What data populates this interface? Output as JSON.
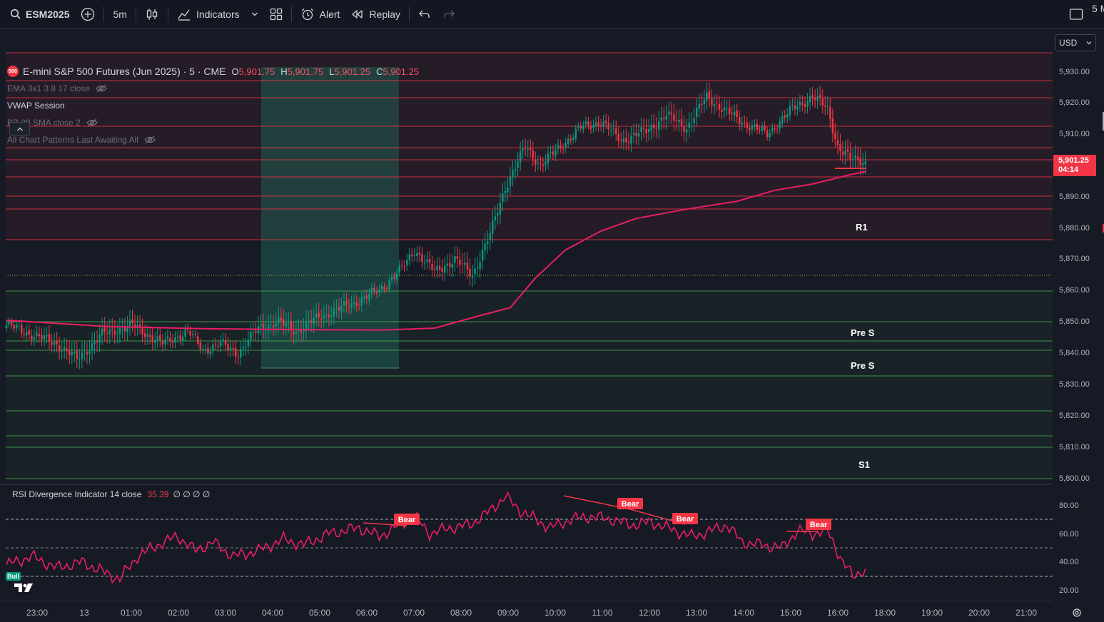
{
  "toolbar": {
    "symbol": "ESM2025",
    "interval": "5m",
    "indicators_label": "Indicators",
    "alert_label": "Alert",
    "replay_label": "Replay",
    "right_label": "5 M"
  },
  "legend": {
    "badge": "500",
    "title": "E-mini S&P 500 Futures (Jun 2025) · 5 · CME",
    "open_label": "O",
    "open": "5,901.75",
    "high_label": "H",
    "high": "5,901.75",
    "low_label": "L",
    "low": "5,901.25",
    "close_label": "C",
    "close": "5,901.25",
    "indicators": [
      "EMA 3x1 3 8 17 close",
      "VWAP Session",
      "BB 20 SMA close 2",
      "All Chart Patterns Last Awaiting All"
    ]
  },
  "currency": "USD",
  "price_tag": {
    "price": "5,901.25",
    "countdown": "04:14"
  },
  "price_axis": [
    "5,930.00",
    "5,920.00",
    "5,910.00",
    "5,890.00",
    "5,880.00",
    "5,870.00",
    "5,860.00",
    "5,850.00",
    "5,840.00",
    "5,830.00",
    "5,820.00",
    "5,810.00",
    "5,800.00"
  ],
  "rsi_axis": [
    "80.00",
    "60.00",
    "40.00",
    "20.00"
  ],
  "time_axis": [
    "23:00",
    "13",
    "01:00",
    "02:00",
    "03:00",
    "04:00",
    "05:00",
    "06:00",
    "07:00",
    "08:00",
    "09:00",
    "10:00",
    "11:00",
    "12:00",
    "13:00",
    "14:00",
    "15:00",
    "16:00",
    "18:00",
    "19:00",
    "20:00",
    "21:00"
  ],
  "level_labels": {
    "r1": "R1",
    "pre_s_1": "Pre S",
    "pre_s_2": "Pre S",
    "s1": "S1"
  },
  "rsi": {
    "label": "RSI Divergence Indicator 14 close",
    "value": "35.39",
    "symbols": "∅ ∅ ∅ ∅",
    "bull": "Bull",
    "bear_labels": [
      "Bear",
      "Bear",
      "Bear",
      "Bear"
    ]
  },
  "colors": {
    "up": "#089981",
    "down": "#f23645",
    "vwap": "#e91e63",
    "resistance": "#f23645",
    "support": "#4caf50"
  }
}
